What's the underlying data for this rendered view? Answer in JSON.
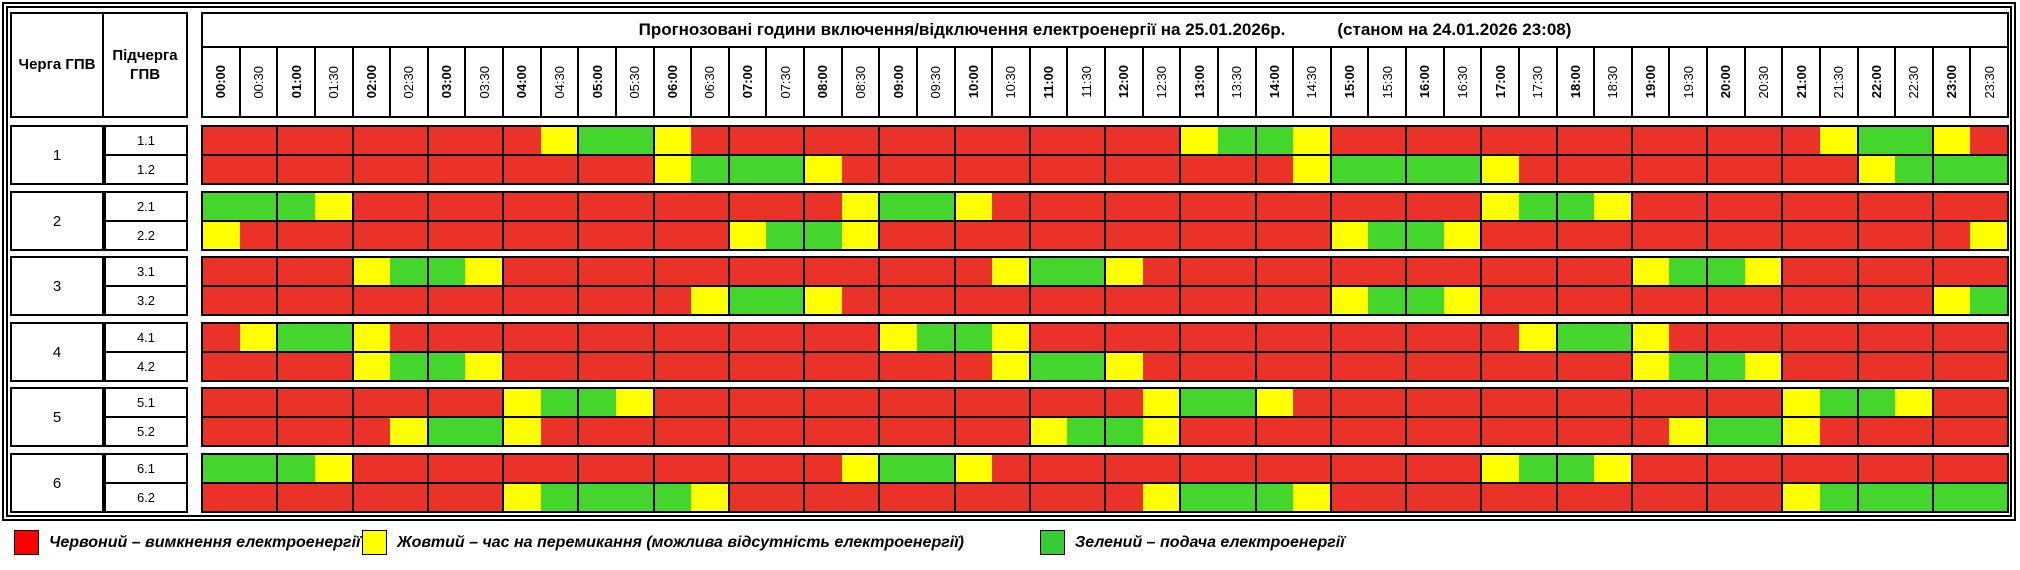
{
  "page": {
    "title": "Прогнозовані години включення/відключення електроенергії на 25.01.2026р.",
    "status_note": "(станом на 24.01.2026 23:08)"
  },
  "table_header": {
    "queue_col": "Черга ГПВ",
    "subqueue_col": "Підчерга ГПВ"
  },
  "colors": {
    "R": "#ea3228",
    "Y": "#ffff00",
    "G": "#44d62c",
    "border": "#000000"
  },
  "legend": [
    {
      "key": "R",
      "swatch": "#fe0000",
      "label": "Червоний – вимкнення електроенергії"
    },
    {
      "key": "Y",
      "swatch": "#ffff00",
      "label": "Жовтий – час на перемикання (можлива відсутність електроенергії)"
    },
    {
      "key": "G",
      "swatch": "#33cc33",
      "label": "Зелений – подача електроенергії"
    }
  ],
  "chart_data": {
    "type": "heatmap",
    "title": "Прогнозовані години включення/відключення електроенергії на 25.01.2026р.",
    "subtitle": "(станом на 24.01.2026 23:08)",
    "x_categories": [
      "00:00",
      "00:30",
      "01:00",
      "01:30",
      "02:00",
      "02:30",
      "03:00",
      "03:30",
      "04:00",
      "04:30",
      "05:00",
      "05:30",
      "06:00",
      "06:30",
      "07:00",
      "07:30",
      "08:00",
      "08:30",
      "09:00",
      "09:30",
      "10:00",
      "10:30",
      "11:00",
      "11:30",
      "12:00",
      "12:30",
      "13:00",
      "13:30",
      "14:00",
      "14:30",
      "15:00",
      "15:30",
      "16:00",
      "16:30",
      "17:00",
      "17:30",
      "18:00",
      "18:30",
      "19:00",
      "19:30",
      "20:00",
      "20:30",
      "21:00",
      "21:30",
      "22:00",
      "22:30",
      "23:00",
      "23:30"
    ],
    "state_meaning": {
      "R": "відключення",
      "Y": "перемикання",
      "G": "подача"
    },
    "rows": [
      {
        "queue": "1",
        "subqueue": "1.1",
        "states": "RRRRRRRRRYGGYRRRRRRRRRRRRRYGGYRRRRRRRRRRRRRYGGYR"
      },
      {
        "queue": "1",
        "subqueue": "1.2",
        "states": "RRRRRRRRRRRRYGGGYRRRRRRRRRRRRYGGGGYRRRRRRRRRYGGG"
      },
      {
        "queue": "2",
        "subqueue": "2.1",
        "states": "GGGYRRRRRRRRRRRRRYGGYRRRRRRRRRRRRRYGGYRRRRRRRRRR"
      },
      {
        "queue": "2",
        "subqueue": "2.2",
        "states": "YRRRRRRRRRRRRRYGGYRRRRRRRRRRRRYGGYRRRRRRRRRRRRRY"
      },
      {
        "queue": "3",
        "subqueue": "3.1",
        "states": "RRRRYGGYRRRRRRRRRRRRRYGGYRRRRRRRRRRRRRYGGYRRRRRR"
      },
      {
        "queue": "3",
        "subqueue": "3.2",
        "states": "RRRRRRRRRRRRRYGGYRRRRRRRRRRRRRYGGYRRRRRRRRRRRRYG"
      },
      {
        "queue": "4",
        "subqueue": "4.1",
        "states": "RYGGYRRRRRRRRRRRRRYGGYRRRRRRRRRRRRRYGGYRRRRRRRRR"
      },
      {
        "queue": "4",
        "subqueue": "4.2",
        "states": "RRRRYGGYRRRRRRRRRRRRRYGGYRRRRRRRRRRRRRYGGYRRRRRR"
      },
      {
        "queue": "5",
        "subqueue": "5.1",
        "states": "RRRRRRRRYGGYRRRRRRRRRRRRRYGGYRRRRRRRRRRRRRYGGYRR"
      },
      {
        "queue": "5",
        "subqueue": "5.2",
        "states": "RRRRRYGGYRRRRRRRRRRRRRYGGYRRRRRRRRRRRRRYGGYRRRRR"
      },
      {
        "queue": "6",
        "subqueue": "6.1",
        "states": "GGGYRRRRRRRRRRRRRYGGYRRRRRRRRRRRRRYGGYRRRRRRRRRR"
      },
      {
        "queue": "6",
        "subqueue": "6.2",
        "states": "RRRRRRRRYGGGGYRRRRRRRRRRRYGGGYRRRRRRRRRRRRYGGGGG"
      }
    ]
  }
}
